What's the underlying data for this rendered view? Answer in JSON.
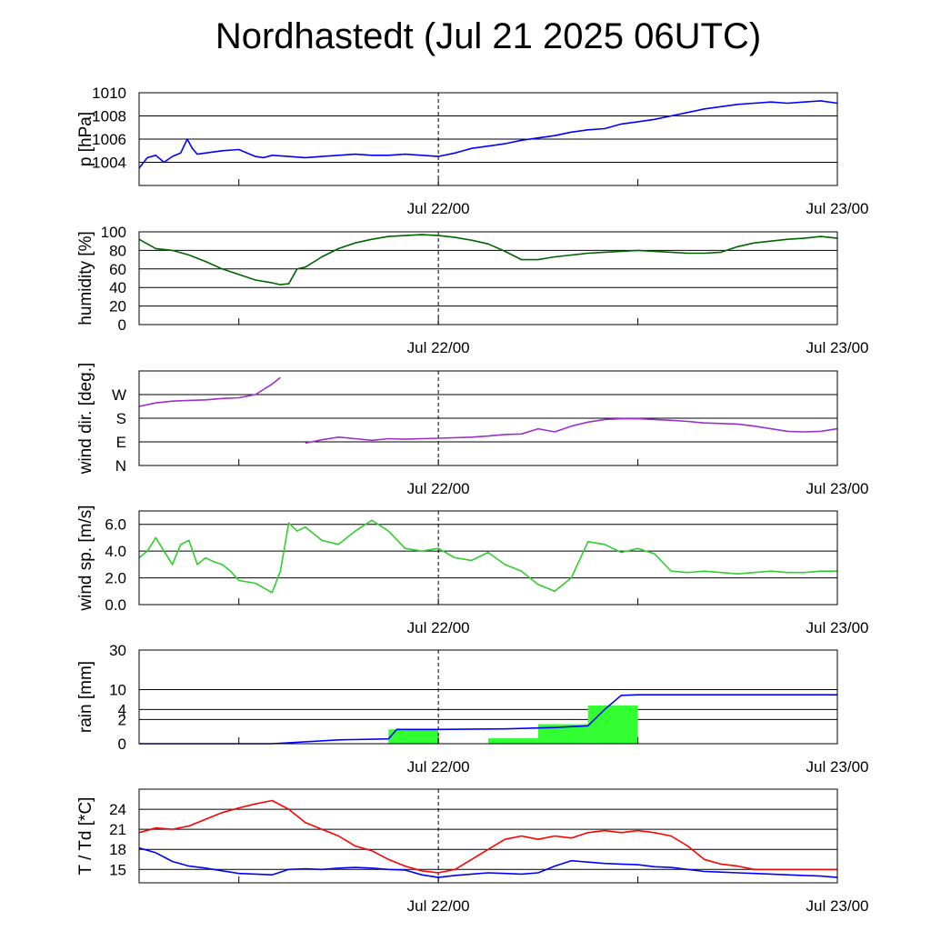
{
  "title": "Nordhastedt (Jul 21 2025 06UTC)",
  "chart_data": [
    {
      "type": "line",
      "ylabel": "p [hPa]",
      "ylim": [
        1002,
        1010
      ],
      "y_ticks": [
        1004,
        1006,
        1008,
        1010
      ],
      "x_tick_labels": [
        "Jul 22/00",
        "Jul 23/00"
      ],
      "x_unit": "hours since Jul 21 06UTC",
      "xlim": [
        0,
        42
      ],
      "series": [
        {
          "color": "#0000ff",
          "x": [
            0,
            0.5,
            1,
            1.5,
            2,
            2.5,
            2.9,
            3.2,
            3.5,
            4,
            5,
            6,
            7,
            7.5,
            8,
            9,
            10,
            11,
            12,
            13,
            14,
            15,
            16,
            17,
            18,
            19,
            20,
            21,
            22,
            23,
            24,
            25,
            26,
            27,
            28,
            29,
            30,
            31,
            32,
            33,
            34,
            35,
            36,
            37,
            38,
            39,
            40,
            41,
            42
          ],
          "y": [
            1003.5,
            1004.4,
            1004.6,
            1004.0,
            1004.5,
            1004.8,
            1006.0,
            1005.2,
            1004.7,
            1004.8,
            1005.0,
            1005.1,
            1004.5,
            1004.4,
            1004.6,
            1004.5,
            1004.4,
            1004.5,
            1004.6,
            1004.7,
            1004.6,
            1004.6,
            1004.7,
            1004.6,
            1004.5,
            1004.8,
            1005.2,
            1005.4,
            1005.6,
            1005.9,
            1006.1,
            1006.3,
            1006.6,
            1006.8,
            1006.9,
            1007.3,
            1007.5,
            1007.7,
            1008.0,
            1008.3,
            1008.6,
            1008.8,
            1009.0,
            1009.1,
            1009.2,
            1009.1,
            1009.2,
            1009.3,
            1009.1
          ]
        }
      ]
    },
    {
      "type": "line",
      "ylabel": "humidity [%]",
      "ylim": [
        0,
        100
      ],
      "y_ticks": [
        0,
        20,
        40,
        60,
        80,
        100
      ],
      "x_tick_labels": [
        "Jul 22/00",
        "Jul 23/00"
      ],
      "xlim": [
        0,
        42
      ],
      "series": [
        {
          "color": "#006400",
          "x": [
            0,
            1,
            2,
            3,
            4,
            5,
            6,
            7,
            8,
            8.5,
            9,
            9.5,
            10,
            11,
            12,
            13,
            14,
            15,
            16,
            17,
            18,
            19,
            20,
            21,
            22,
            23,
            24,
            25,
            26,
            27,
            28,
            29,
            30,
            31,
            32,
            33,
            34,
            35,
            36,
            37,
            38,
            39,
            40,
            41,
            42
          ],
          "y": [
            92,
            82,
            80,
            75,
            68,
            60,
            54,
            48,
            45,
            43,
            44,
            60,
            62,
            73,
            82,
            88,
            92,
            95,
            96,
            97,
            96,
            94,
            91,
            87,
            79,
            70,
            70,
            73,
            75,
            77,
            78,
            79,
            80,
            79,
            78,
            77,
            77,
            78,
            84,
            88,
            90,
            92,
            93,
            95,
            93
          ]
        }
      ]
    },
    {
      "type": "line",
      "ylabel": "wind dir. [deg.]",
      "ylim": [
        0,
        360
      ],
      "y_ticks": [
        0,
        90,
        180,
        270
      ],
      "y_tick_labels": [
        "N",
        "E",
        "S",
        "W"
      ],
      "x_tick_labels": [
        "Jul 22/00",
        "Jul 23/00"
      ],
      "xlim": [
        0,
        42
      ],
      "series": [
        {
          "color": "#9932cc",
          "x": [
            0,
            1,
            2,
            3,
            4,
            5,
            6,
            7,
            8,
            8.5,
            9,
            10,
            11,
            12,
            13,
            14,
            15,
            16,
            17,
            18,
            19,
            20,
            21,
            22,
            23,
            24,
            25,
            26,
            27,
            28,
            29,
            30,
            31,
            32,
            33,
            34,
            35,
            36,
            37,
            38,
            39,
            40,
            41,
            42
          ],
          "y": [
            225,
            238,
            245,
            248,
            250,
            255,
            258,
            270,
            310,
            335,
            null,
            85,
            98,
            108,
            102,
            96,
            102,
            100,
            102,
            104,
            106,
            108,
            112,
            118,
            120,
            140,
            128,
            150,
            165,
            175,
            178,
            178,
            175,
            172,
            168,
            162,
            160,
            158,
            150,
            140,
            130,
            128,
            130,
            140
          ]
        }
      ]
    },
    {
      "type": "line",
      "ylabel": "wind sp. [m/s]",
      "ylim": [
        0,
        7
      ],
      "y_ticks": [
        0.0,
        2.0,
        4.0,
        6.0
      ],
      "y_tick_labels": [
        "0.0",
        "2.0",
        "4.0",
        "6.0"
      ],
      "x_tick_labels": [
        "Jul 22/00",
        "Jul 23/00"
      ],
      "xlim": [
        0,
        42
      ],
      "series": [
        {
          "color": "#32cd32",
          "x": [
            0,
            0.5,
            1,
            1.5,
            2,
            2.5,
            3,
            3.5,
            4,
            4.5,
            5,
            5.5,
            6,
            7,
            8,
            8.5,
            9,
            9.5,
            10,
            11,
            12,
            13,
            14,
            15,
            16,
            17,
            18,
            19,
            20,
            21,
            22,
            23,
            24,
            25,
            26,
            27,
            28,
            29,
            30,
            31,
            32,
            33,
            34,
            35,
            36,
            37,
            38,
            39,
            40,
            41,
            42
          ],
          "y": [
            3.5,
            4.0,
            5.0,
            4.0,
            3.0,
            4.5,
            4.8,
            3.0,
            3.5,
            3.2,
            3.0,
            2.5,
            1.8,
            1.6,
            0.9,
            2.5,
            6.1,
            5.5,
            5.8,
            4.8,
            4.5,
            5.5,
            6.3,
            5.5,
            4.2,
            4.0,
            4.2,
            3.5,
            3.3,
            3.9,
            3.0,
            2.5,
            1.5,
            1.0,
            2.0,
            4.7,
            4.5,
            3.9,
            4.2,
            3.8,
            2.5,
            2.4,
            2.5,
            2.4,
            2.3,
            2.4,
            2.5,
            2.4,
            2.4,
            2.5,
            2.5
          ]
        }
      ]
    },
    {
      "type": "bar",
      "ylabel": "rain [mm]",
      "y_scale": "sqrt",
      "ylim": [
        0,
        30
      ],
      "y_ticks": [
        0,
        2,
        4,
        10,
        30
      ],
      "x_tick_labels": [
        "Jul 22/00",
        "Jul 23/00"
      ],
      "xlim": [
        0,
        42
      ],
      "bars": {
        "color": "#32ff32",
        "x_start": [
          15,
          21,
          24,
          27
        ],
        "x_end": [
          18,
          24,
          27,
          30
        ],
        "values": [
          0.7,
          0.1,
          1.3,
          5.0
        ]
      },
      "series": [
        {
          "color": "#0000ff",
          "x": [
            0,
            8,
            12,
            15,
            15.5,
            18,
            22,
            25,
            27,
            28,
            29,
            30,
            35,
            42
          ],
          "y": [
            0,
            0,
            0.05,
            0.08,
            0.7,
            0.7,
            0.75,
            0.9,
            1.1,
            4.0,
            8.0,
            8.2,
            8.2,
            8.2
          ]
        }
      ]
    },
    {
      "type": "line",
      "ylabel": "T / Td [*C]",
      "ylim": [
        13,
        27
      ],
      "y_ticks": [
        15,
        18,
        21,
        24
      ],
      "x_tick_labels": [
        "Jul 22/00",
        "Jul 23/00"
      ],
      "xlim": [
        0,
        42
      ],
      "series": [
        {
          "color": "#ff0000",
          "x": [
            0,
            1,
            2,
            3,
            4,
            5,
            6,
            7,
            8,
            9,
            10,
            11,
            12,
            13,
            14,
            15,
            16,
            17,
            18,
            19,
            20,
            21,
            22,
            23,
            24,
            25,
            26,
            27,
            28,
            29,
            30,
            31,
            32,
            33,
            34,
            35,
            36,
            37,
            38,
            39,
            40,
            41,
            42
          ],
          "y": [
            20.5,
            21.2,
            21.0,
            21.5,
            22.5,
            23.5,
            24.2,
            24.8,
            25.3,
            24.0,
            22.0,
            21.0,
            20.0,
            18.5,
            17.8,
            16.5,
            15.5,
            14.8,
            14.5,
            15.0,
            16.5,
            18.0,
            19.5,
            20.0,
            19.5,
            20.0,
            19.7,
            20.5,
            20.8,
            20.5,
            20.8,
            20.5,
            20.0,
            18.5,
            16.5,
            15.8,
            15.5,
            15.0,
            15.0,
            15.0,
            15.0,
            15.0,
            15.0
          ]
        },
        {
          "color": "#0000ff",
          "x": [
            0,
            1,
            2,
            3,
            4,
            5,
            6,
            7,
            8,
            9,
            10,
            11,
            12,
            13,
            14,
            15,
            16,
            17,
            18,
            19,
            20,
            21,
            22,
            23,
            24,
            25,
            26,
            27,
            28,
            29,
            30,
            31,
            32,
            33,
            34,
            35,
            36,
            37,
            38,
            39,
            40,
            41,
            42
          ],
          "y": [
            18.2,
            17.5,
            16.2,
            15.5,
            15.2,
            14.8,
            14.4,
            14.3,
            14.2,
            15.0,
            15.1,
            15.0,
            15.2,
            15.3,
            15.2,
            15.0,
            14.9,
            14.2,
            13.8,
            14.1,
            14.3,
            14.5,
            14.4,
            14.3,
            14.5,
            15.5,
            16.3,
            16.1,
            15.9,
            15.8,
            15.7,
            15.4,
            15.3,
            15.0,
            14.7,
            14.6,
            14.5,
            14.4,
            14.3,
            14.2,
            14.1,
            14.0,
            13.8
          ]
        }
      ]
    }
  ]
}
